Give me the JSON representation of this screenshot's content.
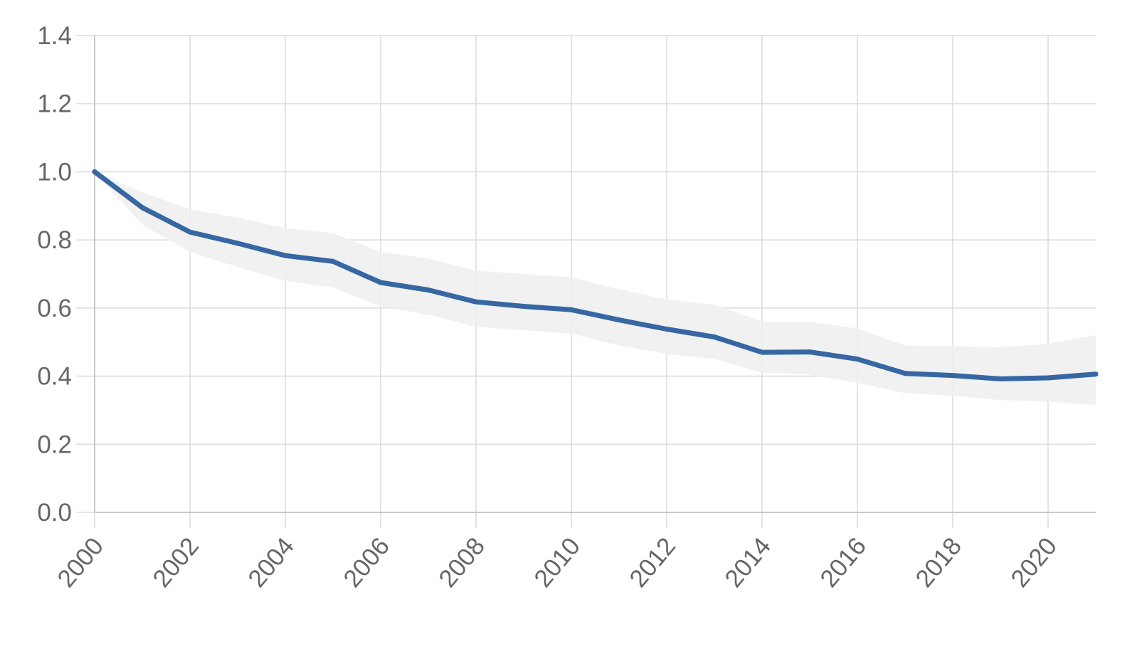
{
  "chart_data": {
    "type": "line",
    "title": "",
    "xlabel": "",
    "ylabel": "",
    "xlim": [
      2000,
      2021
    ],
    "ylim": [
      0,
      1.4
    ],
    "x_ticks": [
      2000,
      2002,
      2004,
      2006,
      2008,
      2010,
      2012,
      2014,
      2016,
      2018,
      2020
    ],
    "x_tick_labels": [
      "2000",
      "2002",
      "2004",
      "2006",
      "2008",
      "2010",
      "2012",
      "2014",
      "2016",
      "2018",
      "2020"
    ],
    "y_ticks": [
      0,
      0.2,
      0.4,
      0.6,
      0.8,
      1.0,
      1.2,
      1.4
    ],
    "y_tick_labels": [
      "0.0",
      "0.2",
      "0.4",
      "0.6",
      "0.8",
      "1.0",
      "1.2",
      "1.4"
    ],
    "grid": true,
    "legend": "none",
    "x": [
      2000,
      2001,
      2002,
      2003,
      2004,
      2005,
      2006,
      2007,
      2008,
      2009,
      2010,
      2011,
      2012,
      2013,
      2014,
      2015,
      2016,
      2017,
      2018,
      2019,
      2020,
      2021
    ],
    "series": [
      {
        "values": [
          1.0,
          0.895,
          0.823,
          0.79,
          0.754,
          0.737,
          0.675,
          0.653,
          0.618,
          0.605,
          0.595,
          0.565,
          0.538,
          0.515,
          0.47,
          0.471,
          0.45,
          0.408,
          0.402,
          0.392,
          0.395,
          0.406
        ],
        "upper": [
          1.0,
          0.94,
          0.89,
          0.865,
          0.835,
          0.82,
          0.765,
          0.745,
          0.71,
          0.7,
          0.69,
          0.655,
          0.625,
          0.61,
          0.56,
          0.56,
          0.54,
          0.49,
          0.488,
          0.485,
          0.495,
          0.52
        ],
        "lower": [
          1.0,
          0.845,
          0.765,
          0.72,
          0.68,
          0.66,
          0.605,
          0.58,
          0.545,
          0.535,
          0.525,
          0.49,
          0.465,
          0.45,
          0.41,
          0.405,
          0.38,
          0.35,
          0.342,
          0.33,
          0.325,
          0.315
        ],
        "color": "#3767a2",
        "band_color": "#efefef"
      }
    ]
  }
}
